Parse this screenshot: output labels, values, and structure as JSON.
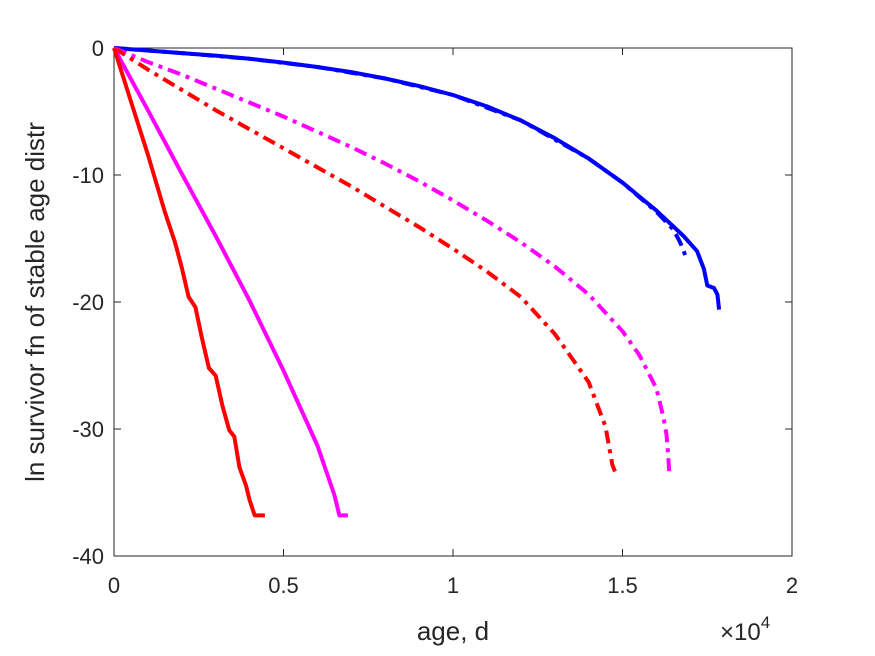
{
  "chart_data": {
    "type": "line",
    "xlabel": "age, d",
    "ylabel": "ln survivor fn of stable age distr",
    "xlim": [
      0,
      20000
    ],
    "ylim": [
      -40,
      0
    ],
    "x_ticks": [
      0,
      5000,
      10000,
      15000,
      20000
    ],
    "x_tick_labels": [
      "0",
      "0.5",
      "1",
      "1.5",
      "2"
    ],
    "x_exponent_base": "×10",
    "x_exponent_power": "4",
    "y_ticks": [
      0,
      -10,
      -20,
      -30,
      -40
    ],
    "y_tick_labels": [
      "0",
      "-10",
      "-20",
      "-30",
      "-40"
    ],
    "grid": false,
    "series": [
      {
        "color": "#0000ff",
        "style": "solid",
        "width": 4,
        "points": [
          [
            0,
            0
          ],
          [
            1000,
            -0.2
          ],
          [
            2000,
            -0.4
          ],
          [
            3000,
            -0.6
          ],
          [
            4000,
            -0.85
          ],
          [
            5000,
            -1.15
          ],
          [
            6000,
            -1.5
          ],
          [
            7000,
            -1.9
          ],
          [
            8000,
            -2.4
          ],
          [
            9000,
            -3.0
          ],
          [
            10000,
            -3.7
          ],
          [
            11000,
            -4.6
          ],
          [
            12000,
            -5.7
          ],
          [
            13000,
            -7.1
          ],
          [
            14000,
            -8.7
          ],
          [
            15000,
            -10.6
          ],
          [
            16000,
            -12.8
          ],
          [
            16800,
            -14.8
          ],
          [
            17200,
            -16.0
          ],
          [
            17400,
            -17.4
          ],
          [
            17500,
            -18.7
          ],
          [
            17700,
            -18.9
          ],
          [
            17800,
            -19.4
          ],
          [
            17850,
            -20.6
          ]
        ]
      },
      {
        "color": "#0000ff",
        "style": "dashdot",
        "width": 4,
        "points": [
          [
            0,
            0
          ],
          [
            2000,
            -0.4
          ],
          [
            4000,
            -0.85
          ],
          [
            6000,
            -1.5
          ],
          [
            8000,
            -2.4
          ],
          [
            10000,
            -3.7
          ],
          [
            12000,
            -5.7
          ],
          [
            14000,
            -8.7
          ],
          [
            15000,
            -10.6
          ],
          [
            16000,
            -12.9
          ],
          [
            16500,
            -14.3
          ],
          [
            16700,
            -15.3
          ],
          [
            16850,
            -16.3
          ]
        ]
      },
      {
        "color": "#ff00ff",
        "style": "dashdot",
        "width": 4,
        "points": [
          [
            0,
            0
          ],
          [
            1000,
            -1.1
          ],
          [
            2000,
            -2.1
          ],
          [
            3000,
            -3.2
          ],
          [
            4000,
            -4.3
          ],
          [
            5000,
            -5.4
          ],
          [
            6000,
            -6.6
          ],
          [
            7000,
            -7.8
          ],
          [
            8000,
            -9.1
          ],
          [
            9000,
            -10.5
          ],
          [
            10000,
            -12.0
          ],
          [
            11000,
            -13.6
          ],
          [
            12000,
            -15.3
          ],
          [
            13000,
            -17.2
          ],
          [
            14000,
            -19.4
          ],
          [
            15000,
            -22.3
          ],
          [
            15500,
            -24.2
          ],
          [
            16000,
            -26.8
          ],
          [
            16200,
            -29.0
          ],
          [
            16300,
            -30.5
          ],
          [
            16350,
            -32.2
          ],
          [
            16380,
            -33.6
          ]
        ]
      },
      {
        "color": "#ff0000",
        "style": "dashdot",
        "width": 4,
        "points": [
          [
            0,
            0
          ],
          [
            1000,
            -1.7
          ],
          [
            2000,
            -3.3
          ],
          [
            3000,
            -4.9
          ],
          [
            4000,
            -6.4
          ],
          [
            5000,
            -7.9
          ],
          [
            6000,
            -9.4
          ],
          [
            7000,
            -10.9
          ],
          [
            8000,
            -12.5
          ],
          [
            9000,
            -14.1
          ],
          [
            10000,
            -15.8
          ],
          [
            11000,
            -17.6
          ],
          [
            12000,
            -19.6
          ],
          [
            13000,
            -22.5
          ],
          [
            14000,
            -26.3
          ],
          [
            14500,
            -29.8
          ],
          [
            14700,
            -32.8
          ],
          [
            14800,
            -33.5
          ]
        ]
      },
      {
        "color": "#ff00ff",
        "style": "solid",
        "width": 4,
        "points": [
          [
            0,
            0
          ],
          [
            1000,
            -4.9
          ],
          [
            2000,
            -9.9
          ],
          [
            3000,
            -14.8
          ],
          [
            4000,
            -19.9
          ],
          [
            5000,
            -25.4
          ],
          [
            6000,
            -31.3
          ],
          [
            6500,
            -35.2
          ],
          [
            6650,
            -36.8
          ],
          [
            6900,
            -36.8
          ]
        ]
      },
      {
        "color": "#ff0000",
        "style": "solid",
        "width": 4,
        "points": [
          [
            0,
            0
          ],
          [
            500,
            -4.2
          ],
          [
            1000,
            -8.4
          ],
          [
            1500,
            -12.9
          ],
          [
            1800,
            -15.3
          ],
          [
            2000,
            -17.3
          ],
          [
            2200,
            -19.6
          ],
          [
            2400,
            -20.4
          ],
          [
            2600,
            -22.9
          ],
          [
            2800,
            -25.2
          ],
          [
            3000,
            -25.8
          ],
          [
            3200,
            -28.2
          ],
          [
            3400,
            -30.1
          ],
          [
            3550,
            -30.6
          ],
          [
            3700,
            -33.0
          ],
          [
            3900,
            -34.5
          ],
          [
            4000,
            -35.6
          ],
          [
            4150,
            -36.8
          ],
          [
            4450,
            -36.8
          ]
        ]
      }
    ]
  }
}
